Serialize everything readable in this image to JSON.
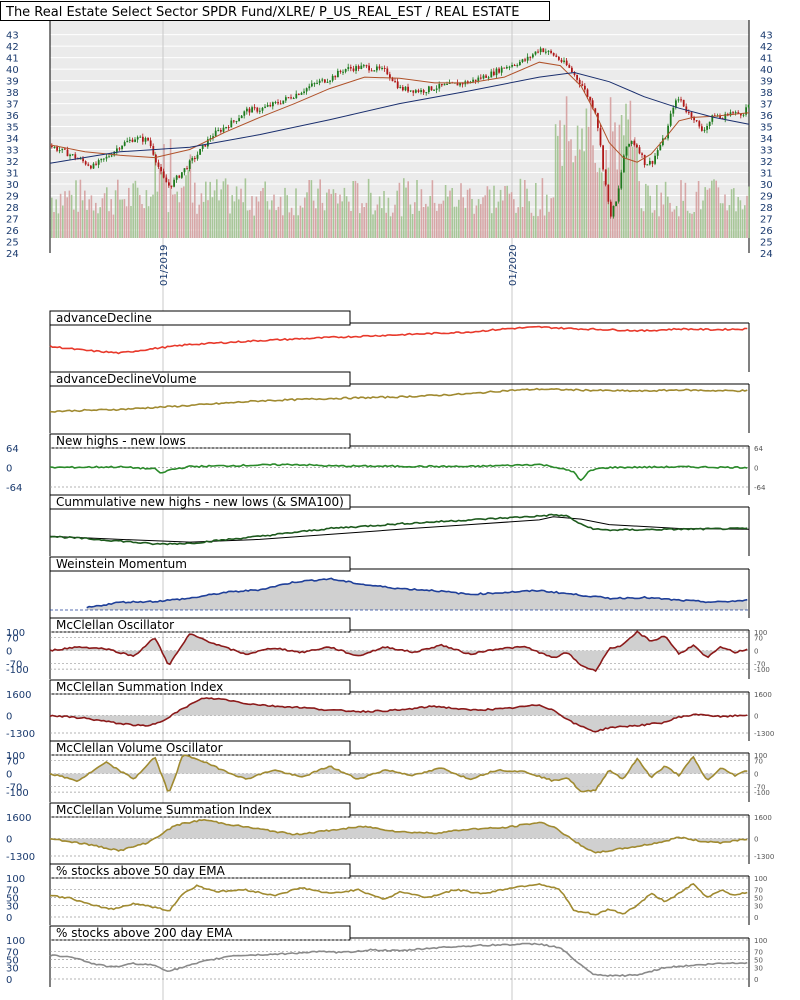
{
  "chart_data": {
    "type": "stock-chart-with-indicators",
    "title": "The Real Estate Select Sector SPDR Fund/XLRE/ P_US_REAL_EST / REAL ESTATE",
    "price": {
      "y_ticks": [
        "24",
        "25",
        "26",
        "27",
        "28",
        "29",
        "30",
        "31",
        "32",
        "33",
        "34",
        "35",
        "36",
        "37",
        "38",
        "39",
        "40",
        "41",
        "42",
        "43"
      ],
      "ylim": [
        24,
        43.4
      ],
      "date_labels": [
        "01/2019",
        "01/2020"
      ],
      "series": [
        {
          "name": "price",
          "x": [
            0,
            3,
            6,
            8,
            10,
            12,
            14,
            16,
            17,
            19,
            21,
            23,
            25,
            26,
            28,
            30,
            33,
            35,
            38,
            40,
            42,
            45,
            48,
            50,
            53,
            55,
            58,
            60,
            63,
            65,
            68,
            70,
            72,
            74,
            76,
            78,
            79,
            80,
            81,
            82,
            83,
            84,
            85,
            86,
            87,
            88,
            89,
            90,
            91,
            92,
            93,
            94,
            95,
            96,
            97,
            98,
            99,
            100
          ],
          "values": [
            33.3,
            32.5,
            31.5,
            32.3,
            33.4,
            34,
            33.8,
            30.5,
            29.8,
            31.2,
            32.6,
            34.2,
            35,
            35.4,
            36.4,
            36.5,
            37.2,
            37.8,
            38.8,
            39.2,
            40,
            40.2,
            39.8,
            38.3,
            38.1,
            38.4,
            38.7,
            38.9,
            39.6,
            40.2,
            40.8,
            41.8,
            41.2,
            40.2,
            38.6,
            36.2,
            31.5,
            27.2,
            28.6,
            32.6,
            33.8,
            33.2,
            31.8,
            31.9,
            33.2,
            34.2,
            36.8,
            37.5,
            36.3,
            35.8,
            34.6,
            35.2,
            36.1,
            35.6,
            36.3,
            36.1,
            36.2,
            37
          ]
        },
        {
          "name": "sma50",
          "x": [
            0,
            5,
            10,
            15,
            20,
            25,
            30,
            35,
            40,
            45,
            50,
            55,
            60,
            65,
            70,
            73,
            76,
            78,
            80,
            82,
            84,
            86,
            88,
            90,
            92,
            95,
            100
          ],
          "values": [
            33.4,
            32.8,
            32.5,
            32.3,
            33,
            34.5,
            35.8,
            37,
            38.3,
            39.3,
            39.2,
            38.8,
            38.8,
            39.3,
            40.6,
            40.3,
            38.5,
            36.2,
            33.6,
            32.3,
            31.9,
            32.6,
            34,
            35.5,
            35.8,
            35.9,
            36.2
          ]
        },
        {
          "name": "sma200",
          "x": [
            0,
            10,
            20,
            30,
            40,
            50,
            60,
            70,
            75,
            80,
            85,
            90,
            95,
            100
          ],
          "values": [
            31.8,
            32.8,
            33.2,
            34.3,
            35.6,
            37,
            38.1,
            39.3,
            39.7,
            38.9,
            37.6,
            36.6,
            35.8,
            35.2
          ]
        }
      ]
    },
    "panels": [
      {
        "title": "advanceDecline",
        "color": "#e8392b",
        "series": {
          "x": [
            0,
            5,
            10,
            15,
            20,
            30,
            40,
            50,
            60,
            65,
            70,
            73,
            76,
            80,
            85,
            90,
            95,
            100
          ],
          "values": [
            0.45,
            0.35,
            0.28,
            0.4,
            0.5,
            0.6,
            0.68,
            0.75,
            0.82,
            0.9,
            0.95,
            0.92,
            0.9,
            0.88,
            0.85,
            0.9,
            0.88,
            0.9
          ]
        }
      },
      {
        "title": "advanceDeclineVolume",
        "color": "#a08a30",
        "series": {
          "x": [
            0,
            10,
            20,
            30,
            40,
            50,
            60,
            65,
            70,
            75,
            80,
            85,
            90,
            95,
            100
          ],
          "values": [
            0.35,
            0.4,
            0.5,
            0.62,
            0.68,
            0.72,
            0.8,
            0.88,
            0.92,
            0.9,
            0.88,
            0.87,
            0.9,
            0.88,
            0.88
          ]
        }
      },
      {
        "title": "New highs - new lows",
        "color": "#2a8a2a",
        "y_ticks": [
          "64",
          "0",
          "-64"
        ],
        "right_ticks": [
          "64",
          "0",
          "-64"
        ],
        "series": {
          "x": [
            0,
            10,
            15,
            16,
            17,
            20,
            30,
            35,
            40,
            50,
            60,
            70,
            72,
            75,
            76,
            77,
            78,
            80,
            90,
            100
          ],
          "values": [
            0,
            2,
            -5,
            -20,
            -8,
            3,
            8,
            10,
            5,
            4,
            3,
            10,
            3,
            -15,
            -45,
            -15,
            -5,
            0,
            2,
            0
          ]
        }
      },
      {
        "title": "Cummulative new highs - new lows (& SMA100)",
        "color": "#1d5a1d",
        "series": {
          "x": [
            0,
            10,
            15,
            20,
            30,
            40,
            50,
            60,
            70,
            72,
            74,
            76,
            78,
            80,
            85,
            90,
            100
          ],
          "values": [
            0.3,
            0.18,
            0.1,
            0.12,
            0.3,
            0.5,
            0.62,
            0.72,
            0.82,
            0.85,
            0.82,
            0.6,
            0.48,
            0.46,
            0.47,
            0.48,
            0.5
          ]
        },
        "sma": {
          "x": [
            0,
            10,
            20,
            30,
            40,
            50,
            60,
            70,
            72,
            76,
            80,
            90,
            100
          ],
          "values": [
            0.3,
            0.22,
            0.15,
            0.22,
            0.35,
            0.48,
            0.6,
            0.72,
            0.8,
            0.74,
            0.6,
            0.5,
            0.48
          ]
        }
      },
      {
        "title": "Weinstein Momentum",
        "color": "#1f3f99",
        "fill": true,
        "series": {
          "x": [
            5,
            10,
            15,
            20,
            25,
            30,
            35,
            40,
            45,
            50,
            55,
            60,
            65,
            70,
            75,
            80,
            85,
            90,
            95,
            100
          ],
          "values": [
            0.05,
            0.2,
            0.22,
            0.3,
            0.45,
            0.52,
            0.72,
            0.8,
            0.65,
            0.55,
            0.5,
            0.4,
            0.45,
            0.5,
            0.4,
            0.3,
            0.32,
            0.25,
            0.2,
            0.25
          ]
        }
      },
      {
        "title": "McClellan Oscillator",
        "color": "#8b1a1a",
        "fill": true,
        "y_ticks": [
          "100",
          "70",
          "0",
          "-70",
          "-100"
        ],
        "right_ticks": [
          "100",
          "70",
          "0",
          "-70",
          "-100"
        ],
        "series": {
          "x": [
            0,
            4,
            8,
            12,
            15,
            17,
            20,
            24,
            28,
            32,
            36,
            40,
            44,
            48,
            52,
            56,
            60,
            64,
            68,
            72,
            74,
            76,
            78,
            80,
            82,
            84,
            86,
            88,
            90,
            92,
            94,
            96,
            98,
            100
          ],
          "values": [
            0,
            20,
            10,
            -30,
            70,
            -80,
            90,
            30,
            -20,
            15,
            -10,
            20,
            -30,
            20,
            -10,
            30,
            -20,
            10,
            20,
            -40,
            -10,
            -80,
            -110,
            10,
            30,
            100,
            50,
            80,
            -20,
            30,
            -40,
            20,
            -10,
            10
          ]
        }
      },
      {
        "title": "McClellan Summation Index",
        "color": "#8b1a1a",
        "fill": true,
        "y_ticks": [
          "1600",
          "0",
          "-1300"
        ],
        "right_ticks": [
          "1600",
          "0",
          "-1300"
        ],
        "series": {
          "x": [
            0,
            5,
            10,
            14,
            16,
            20,
            22,
            25,
            28,
            32,
            36,
            40,
            45,
            50,
            55,
            60,
            65,
            70,
            72,
            75,
            78,
            80,
            85,
            88,
            90,
            93,
            96,
            100
          ],
          "values": [
            0,
            -200,
            -600,
            -800,
            -400,
            800,
            1300,
            1200,
            900,
            700,
            600,
            400,
            300,
            400,
            700,
            400,
            500,
            800,
            400,
            -600,
            -1200,
            -900,
            -700,
            -500,
            -100,
            100,
            -100,
            50
          ]
        }
      },
      {
        "title": "McClellan Volume Oscillator",
        "color": "#a08a30",
        "fill": true,
        "y_ticks": [
          "100",
          "70",
          "0",
          "-70",
          "-100"
        ],
        "right_ticks": [
          "100",
          "70",
          "0",
          "-70",
          "-100"
        ],
        "series": {
          "x": [
            0,
            4,
            8,
            12,
            15,
            17,
            19,
            21,
            24,
            28,
            32,
            36,
            40,
            44,
            48,
            52,
            56,
            60,
            64,
            68,
            72,
            74,
            76,
            78,
            80,
            82,
            84,
            86,
            88,
            90,
            92,
            94,
            96,
            98,
            100
          ],
          "values": [
            0,
            -40,
            60,
            -30,
            90,
            -110,
            100,
            80,
            30,
            -30,
            20,
            -20,
            40,
            -30,
            20,
            -10,
            30,
            -30,
            20,
            10,
            -40,
            -20,
            -100,
            -90,
            20,
            -30,
            80,
            -20,
            40,
            -10,
            90,
            -40,
            30,
            -10,
            20
          ]
        }
      },
      {
        "title": "McClellan Volume Summation Index",
        "color": "#a08a30",
        "fill": true,
        "y_ticks": [
          "1600",
          "0",
          "-1300"
        ],
        "right_ticks": [
          "1600",
          "0",
          "-1300"
        ],
        "series": {
          "x": [
            0,
            5,
            10,
            14,
            18,
            22,
            25,
            30,
            35,
            40,
            45,
            50,
            55,
            60,
            65,
            70,
            72,
            75,
            78,
            80,
            85,
            88,
            90,
            93,
            96,
            100
          ],
          "values": [
            0,
            -400,
            -900,
            -300,
            1000,
            1400,
            1100,
            700,
            300,
            600,
            900,
            500,
            400,
            700,
            800,
            1200,
            900,
            -200,
            -1100,
            -900,
            -500,
            -200,
            100,
            -200,
            -300,
            0
          ]
        }
      },
      {
        "title": "% stocks above 50 day EMA",
        "color": "#a08a30",
        "y_ticks": [
          "100",
          "70",
          "50",
          "30",
          "0"
        ],
        "right_ticks": [
          "100",
          "70",
          "50",
          "30",
          "0"
        ],
        "series": {
          "x": [
            0,
            3,
            6,
            9,
            12,
            15,
            17,
            19,
            21,
            24,
            28,
            32,
            36,
            40,
            44,
            48,
            50,
            54,
            58,
            62,
            66,
            70,
            73,
            75,
            77,
            78,
            80,
            82,
            84,
            86,
            88,
            90,
            92,
            94,
            96,
            98,
            100
          ],
          "values": [
            55,
            48,
            30,
            20,
            35,
            25,
            15,
            60,
            80,
            65,
            70,
            55,
            75,
            60,
            70,
            45,
            65,
            50,
            70,
            60,
            75,
            85,
            70,
            15,
            10,
            5,
            20,
            8,
            30,
            60,
            40,
            60,
            85,
            50,
            70,
            55,
            65
          ]
        }
      },
      {
        "title": "% stocks above 200 day EMA",
        "color": "#8a8a8a",
        "y_ticks": [
          "100",
          "70",
          "50",
          "30",
          "0"
        ],
        "right_ticks": [
          "100",
          "70",
          "50",
          "30",
          "0"
        ],
        "series": {
          "x": [
            0,
            3,
            6,
            9,
            12,
            15,
            17,
            19,
            22,
            26,
            30,
            34,
            38,
            42,
            46,
            50,
            55,
            60,
            65,
            70,
            73,
            75,
            77,
            78,
            80,
            84,
            88,
            92,
            96,
            100
          ],
          "values": [
            60,
            58,
            40,
            30,
            40,
            35,
            20,
            30,
            45,
            60,
            62,
            65,
            70,
            68,
            75,
            72,
            80,
            85,
            88,
            90,
            80,
            50,
            20,
            10,
            8,
            10,
            30,
            35,
            40,
            42
          ]
        }
      }
    ]
  }
}
